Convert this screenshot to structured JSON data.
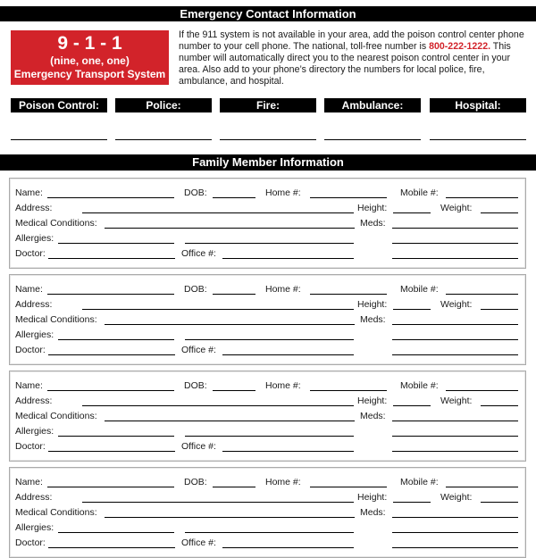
{
  "emergency": {
    "title": "Emergency Contact Information",
    "badge": {
      "number": "9 - 1 - 1",
      "spelled": "(nine, one, one)",
      "system": "Emergency Transport System"
    },
    "intro_before": "If the 911 system is not available in your area, add the poison control center phone number to your cell phone. The national, toll-free number is ",
    "phone": "800-222-1222.",
    "intro_after": " This number will automatically direct you to the nearest poison control center in your area. Also add to your phone’s directory the numbers for local police, fire, ambulance, and hospital.",
    "contacts": [
      "Poison Control:",
      "Police:",
      "Fire:",
      "Ambulance:",
      "Hospital:"
    ]
  },
  "family": {
    "title": "Family Member Information",
    "labels": {
      "name": "Name:",
      "dob": "DOB:",
      "home": "Home #:",
      "mobile": "Mobile #:",
      "address": "Address:",
      "height": "Height:",
      "weight": "Weight:",
      "medical": "Medical Conditions:",
      "meds": "Meds:",
      "allergies": "Allergies:",
      "doctor": "Doctor:",
      "office": "Office #:"
    },
    "card_count": 4
  },
  "colors": {
    "accent_red": "#d2232a",
    "header_bg": "#000000"
  }
}
